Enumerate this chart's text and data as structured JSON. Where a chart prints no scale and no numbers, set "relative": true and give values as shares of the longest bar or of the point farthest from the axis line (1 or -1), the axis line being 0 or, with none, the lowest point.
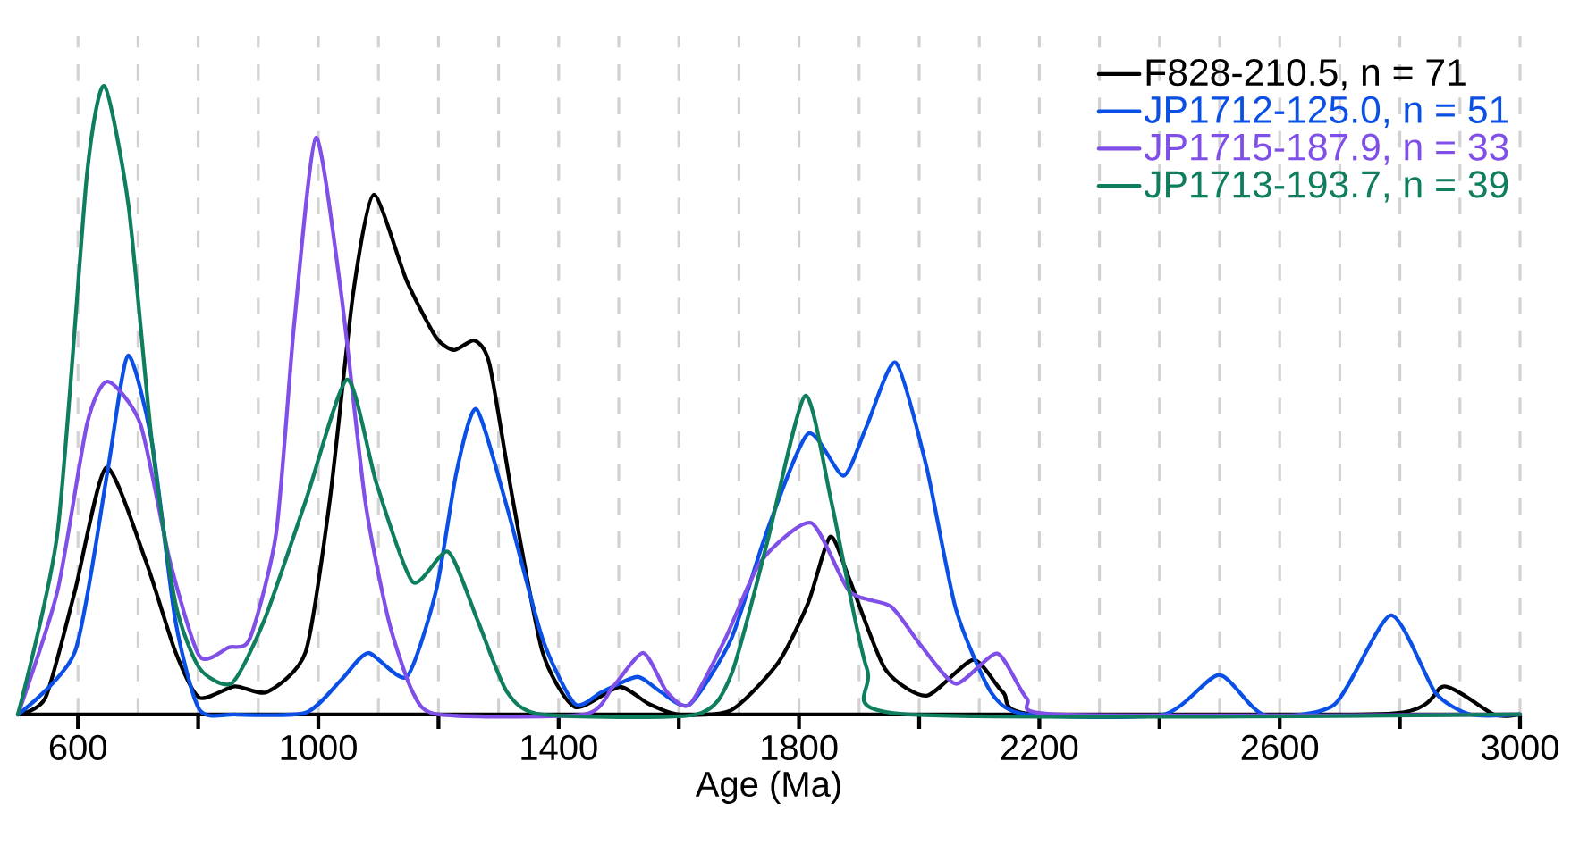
{
  "chart_data": {
    "type": "line",
    "relative": true,
    "xlabel": "Age (Ma)",
    "xlim": [
      500,
      3000
    ],
    "xticks": [
      600,
      {
        "value": 800,
        "label": null
      },
      1000,
      {
        "value": 1200,
        "label": null
      },
      1400,
      {
        "value": 1600,
        "label": null
      },
      1800,
      {
        "value": 2000,
        "label": null
      },
      2200,
      {
        "value": 2400,
        "label": null
      },
      2600,
      {
        "value": 2800,
        "label": null
      },
      3000
    ],
    "grid": "x",
    "legend": "top right",
    "marker": "none",
    "line_style": "solid",
    "series": [
      {
        "name": "F828-210.5, n = 71",
        "color": "#000000",
        "x": [
          500,
          546,
          595,
          647,
          713,
          762,
          802,
          861,
          915,
          979,
          1019,
          1058,
          1092,
          1147,
          1196,
          1226,
          1260,
          1285,
          1324,
          1373,
          1427,
          1501,
          1550,
          1600,
          1687,
          1765,
          1815,
          1852,
          1884,
          1943,
          2012,
          2090,
          2140,
          2199,
          2790,
          2874,
          2957,
          3000
        ],
        "values": [
          0,
          0.027,
          0.197,
          0.393,
          0.244,
          0.1,
          0.027,
          0.045,
          0.036,
          0.1,
          0.34,
          0.67,
          0.827,
          0.69,
          0.6,
          0.58,
          0.595,
          0.557,
          0.34,
          0.1,
          0.012,
          0.044,
          0.017,
          0,
          0.007,
          0.082,
          0.177,
          0.283,
          0.215,
          0.073,
          0.03,
          0.087,
          0.035,
          0,
          0.002,
          0.045,
          0,
          0
        ]
      },
      {
        "name": "JP1712-125.0, n = 51",
        "color": "#0a50e6",
        "x": [
          500,
          595,
          649,
          683,
          723,
          762,
          802,
          861,
          979,
          1038,
          1083,
          1147,
          1196,
          1230,
          1263,
          1314,
          1373,
          1427,
          1472,
          1531,
          1570,
          1618,
          1687,
          1746,
          1815,
          1874,
          1913,
          1961,
          2012,
          2061,
          2120,
          2179,
          2406,
          2499,
          2573,
          2691,
          2785,
          2859,
          2918,
          3000
        ],
        "values": [
          0,
          0.1,
          0.386,
          0.571,
          0.434,
          0.15,
          0.008,
          0,
          0.003,
          0.055,
          0.098,
          0.06,
          0.197,
          0.386,
          0.486,
          0.33,
          0.121,
          0.017,
          0.036,
          0.06,
          0.036,
          0.016,
          0.12,
          0.29,
          0.447,
          0.38,
          0.46,
          0.56,
          0.395,
          0.168,
          0.035,
          0,
          0,
          0.063,
          0,
          0.016,
          0.158,
          0.035,
          0,
          0
        ]
      },
      {
        "name": "JP1715-187.9, n = 33",
        "color": "#7f4fe8",
        "x": [
          500,
          566,
          615,
          649,
          704,
          753,
          802,
          851,
          886,
          930,
          960,
          996,
          1038,
          1078,
          1117,
          1157,
          1201,
          1442,
          1491,
          1541,
          1580,
          1618,
          1677,
          1736,
          1820,
          1884,
          1953,
          2002,
          2061,
          2130,
          2179,
          2238,
          3000
        ],
        "values": [
          0,
          0.197,
          0.462,
          0.53,
          0.462,
          0.244,
          0.093,
          0.107,
          0.121,
          0.29,
          0.623,
          0.918,
          0.67,
          0.34,
          0.15,
          0.036,
          0,
          0,
          0.045,
          0.098,
          0.036,
          0.016,
          0.12,
          0.243,
          0.305,
          0.196,
          0.172,
          0.111,
          0.049,
          0.097,
          0.026,
          0,
          0
        ]
      },
      {
        "name": "JP1713-193.7, n = 39",
        "color": "#0e7e5e",
        "x": [
          500,
          566,
          615,
          644,
          684,
          723,
          762,
          802,
          856,
          910,
          979,
          1048,
          1097,
          1157,
          1216,
          1265,
          1314,
          1373,
          1628,
          1687,
          1746,
          1810,
          1854,
          1913,
          1982,
          3000
        ],
        "values": [
          0,
          0.29,
          0.86,
          1.0,
          0.81,
          0.434,
          0.178,
          0.074,
          0.05,
          0.15,
          0.34,
          0.533,
          0.367,
          0.211,
          0.259,
          0.15,
          0.036,
          0,
          0,
          0.063,
          0.27,
          0.507,
          0.338,
          0.073,
          0,
          0
        ]
      }
    ]
  }
}
